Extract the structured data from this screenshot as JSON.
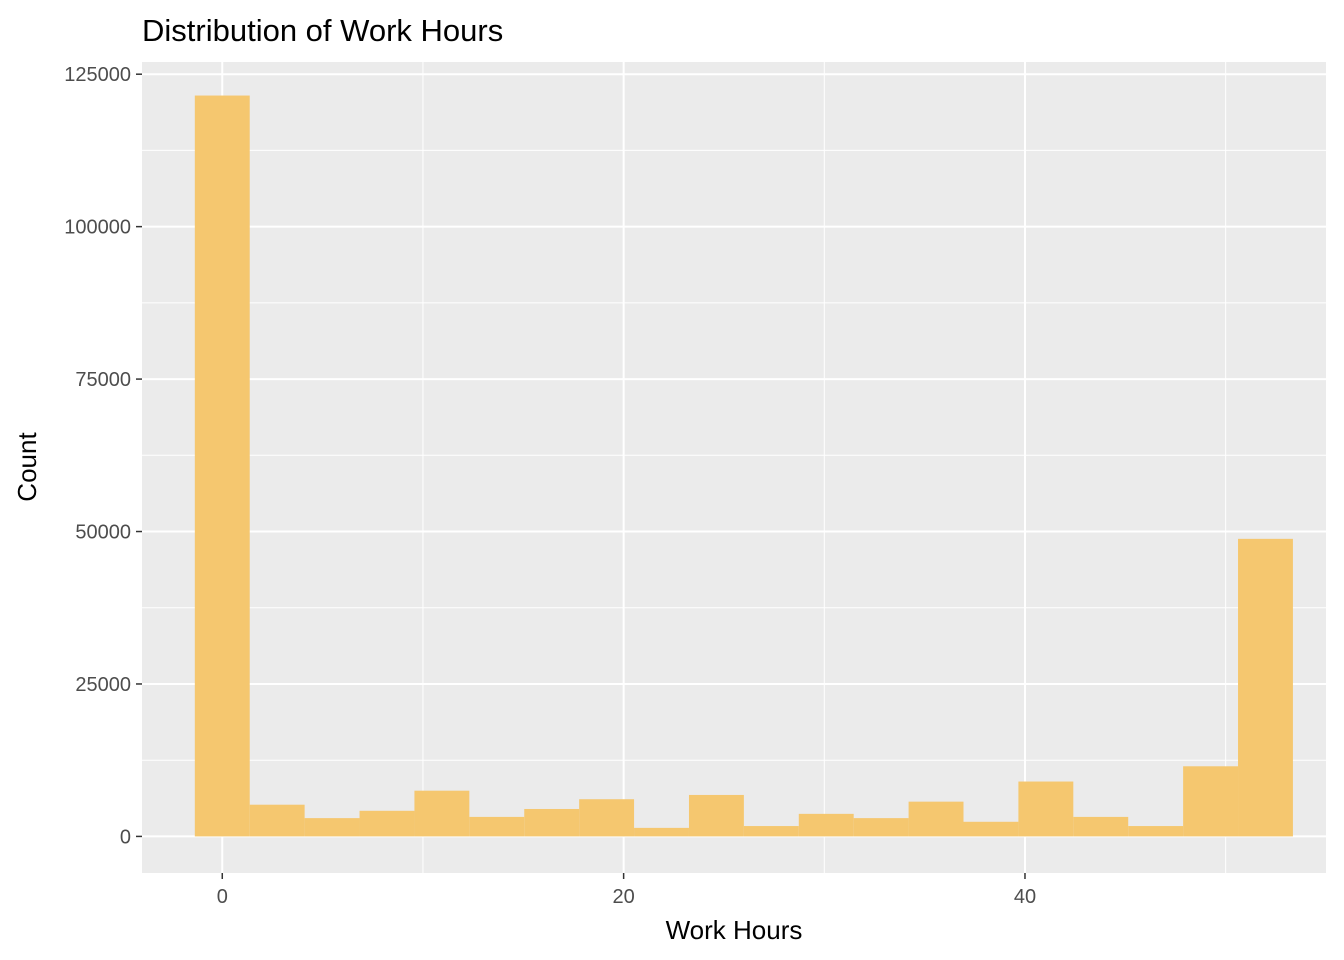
{
  "chart_data": {
    "type": "bar",
    "title": "Distribution of Work Hours",
    "xlabel": "Work Hours",
    "ylabel": "Count",
    "xlim": [
      -4,
      55
    ],
    "ylim": [
      -6000,
      127000
    ],
    "x_ticks": [
      0,
      20,
      40
    ],
    "y_ticks": [
      0,
      25000,
      50000,
      75000,
      100000,
      125000
    ],
    "bin_width": 2.736,
    "bin_centers": [
      0.0,
      2.736,
      5.472,
      8.208,
      10.944,
      13.68,
      16.416,
      19.152,
      21.888,
      24.624,
      27.36,
      30.096,
      32.832,
      35.568,
      38.304,
      41.04,
      43.776,
      46.512,
      49.248,
      51.984
    ],
    "values": [
      121500,
      5200,
      3000,
      4200,
      7500,
      3200,
      4500,
      6100,
      1400,
      6800,
      1700,
      3700,
      3000,
      5700,
      2400,
      9000,
      3200,
      1700,
      11500,
      48800
    ],
    "bar_color": "#f5c76f",
    "panel_background": "#ebebeb",
    "grid": true,
    "legend": "none"
  }
}
